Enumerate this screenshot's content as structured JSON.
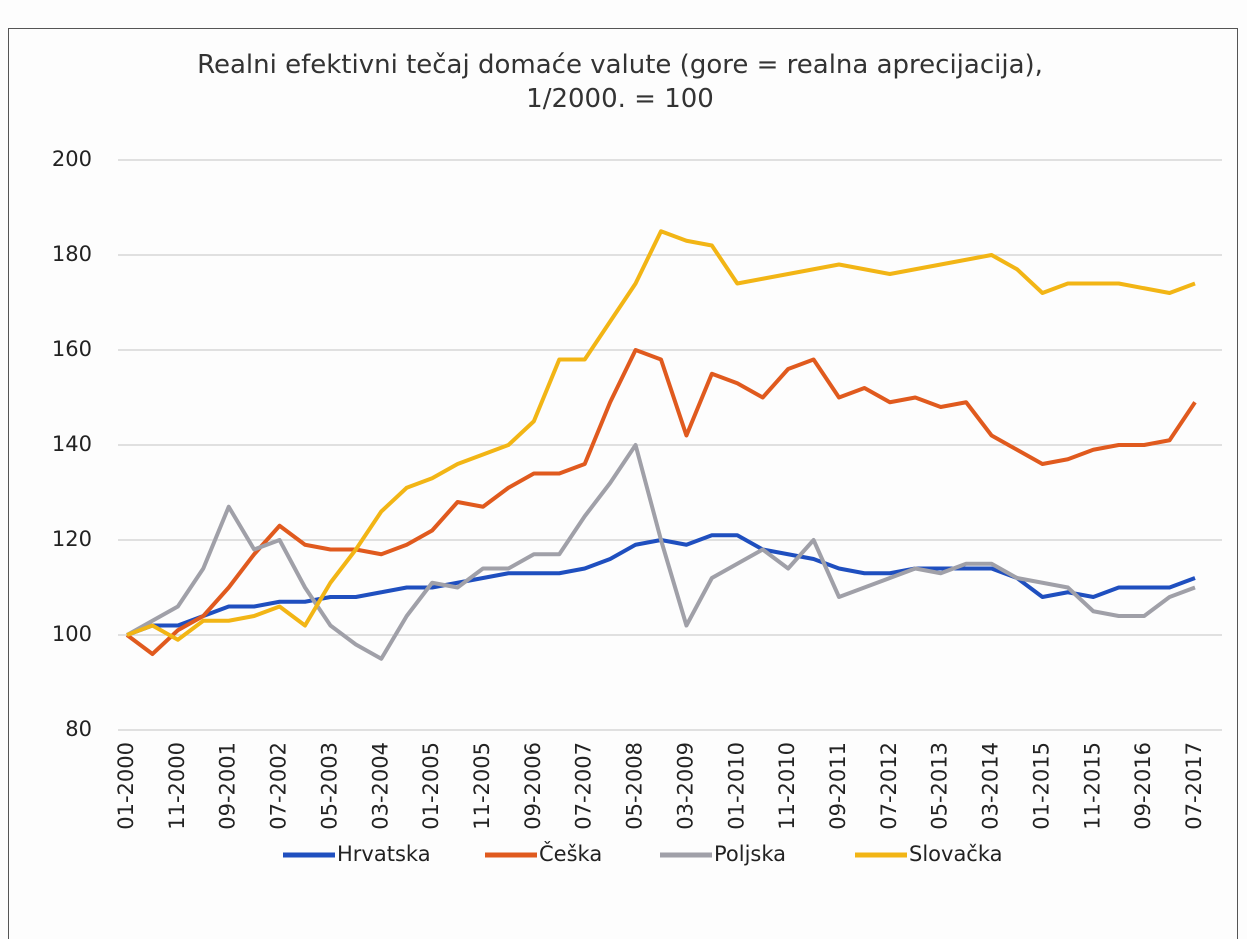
{
  "chart_data": {
    "type": "line",
    "title": "Realni efektivni tečaj domaće valute (gore = realna aprecijacija), 1/2000. = 100",
    "categories": [
      "01-2000",
      null,
      "11-2000",
      null,
      "09-2001",
      null,
      "07-2002",
      null,
      "05-2003",
      null,
      "03-2004",
      null,
      "01-2005",
      null,
      "11-2005",
      null,
      "09-2006",
      null,
      "07-2007",
      null,
      "05-2008",
      null,
      "03-2009",
      null,
      "01-2010",
      null,
      "11-2010",
      null,
      "09-2011",
      null,
      "07-2012",
      null,
      "05-2013",
      null,
      "03-2014",
      null,
      "01-2015",
      null,
      "11-2015",
      null,
      "09-2016",
      null,
      "07-2017"
    ],
    "series": [
      {
        "name": "Hrvatska",
        "color": "#1f4fbf",
        "values": [
          100,
          102,
          102,
          104,
          106,
          106,
          107,
          107,
          108,
          108,
          109,
          110,
          110,
          111,
          112,
          113,
          113,
          113,
          114,
          116,
          119,
          120,
          119,
          121,
          121,
          118,
          117,
          116,
          114,
          113,
          113,
          114,
          114,
          114,
          114,
          112,
          108,
          109,
          108,
          110,
          110,
          110,
          112
        ]
      },
      {
        "name": "Češka",
        "color": "#e05a1e",
        "values": [
          100,
          96,
          101,
          104,
          110,
          117,
          123,
          119,
          118,
          118,
          117,
          119,
          122,
          128,
          127,
          131,
          134,
          134,
          136,
          149,
          160,
          158,
          142,
          155,
          153,
          150,
          156,
          158,
          150,
          152,
          149,
          150,
          148,
          149,
          142,
          139,
          136,
          137,
          139,
          140,
          140,
          141,
          149
        ]
      },
      {
        "name": "Poljska",
        "color": "#a0a0a8",
        "values": [
          100,
          103,
          106,
          114,
          127,
          118,
          120,
          110,
          102,
          98,
          95,
          104,
          111,
          110,
          114,
          114,
          117,
          117,
          125,
          132,
          140,
          120,
          102,
          112,
          115,
          118,
          114,
          120,
          108,
          110,
          112,
          114,
          113,
          115,
          115,
          112,
          111,
          110,
          105,
          104,
          104,
          108,
          110
        ]
      },
      {
        "name": "Slovačka",
        "color": "#f2b515",
        "values": [
          100,
          102,
          99,
          103,
          103,
          104,
          106,
          102,
          111,
          118,
          126,
          131,
          133,
          136,
          138,
          140,
          145,
          158,
          158,
          166,
          174,
          185,
          183,
          182,
          174,
          175,
          176,
          177,
          178,
          177,
          176,
          177,
          178,
          179,
          180,
          177,
          172,
          174,
          174,
          174,
          173,
          172,
          174
        ]
      }
    ],
    "ylim": [
      80,
      200
    ],
    "yticks": [
      80,
      100,
      120,
      140,
      160,
      180,
      200
    ],
    "grid": true,
    "legend": "bottom"
  }
}
